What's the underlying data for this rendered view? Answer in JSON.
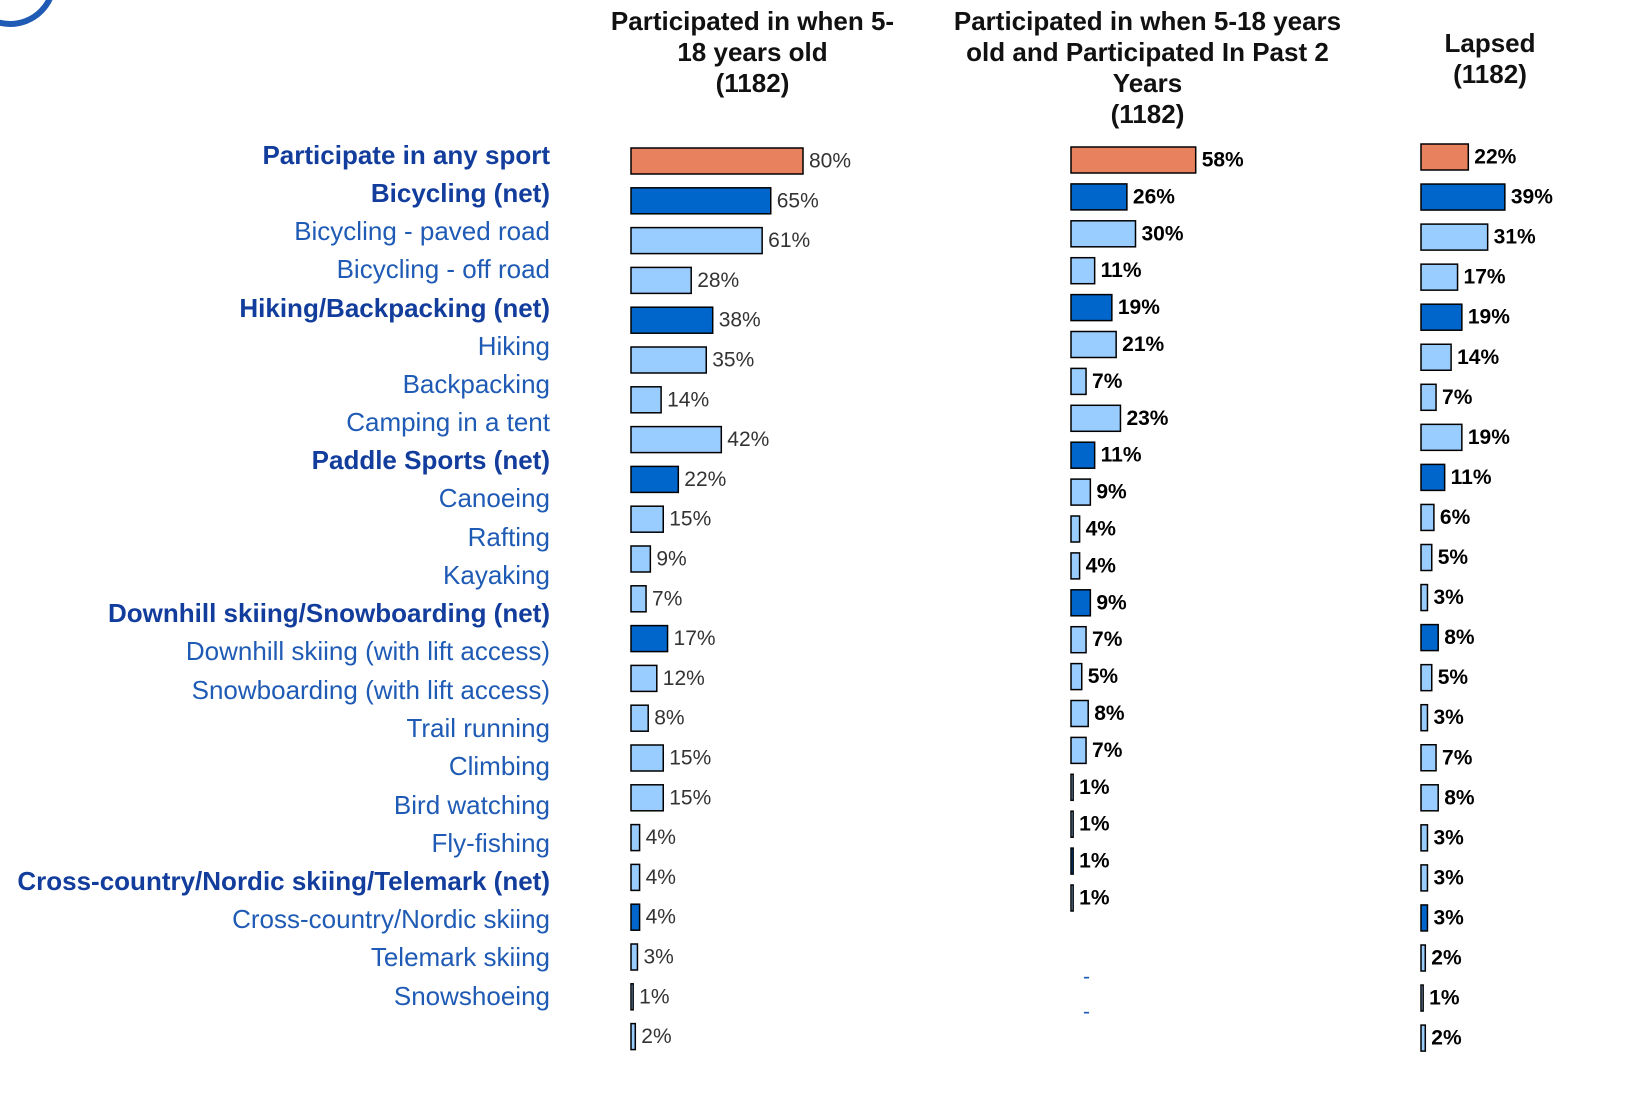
{
  "chart_data": {
    "type": "bar",
    "orientation": "horizontal",
    "categories": [
      "Participate in any sport",
      "Bicycling (net)",
      "Bicycling - paved road",
      "Bicycling - off road",
      "Hiking/Backpacking (net)",
      "Hiking",
      "Backpacking",
      "Camping in a tent",
      "Paddle Sports (net)",
      "Canoeing",
      "Rafting",
      "Kayaking",
      "Downhill skiing/Snowboarding (net)",
      "Downhill skiing  (with lift access)",
      "Snowboarding  (with lift access)",
      "Trail running",
      "Climbing",
      "Bird watching",
      "Fly-fishing",
      "Cross-country/Nordic skiing/Telemark (net)",
      "Cross-country/Nordic skiing",
      "Telemark skiing",
      "Snowshoeing"
    ],
    "colors": [
      "#e8825e",
      "#0066cc",
      "#99ccff",
      "#99ccff",
      "#0066cc",
      "#99ccff",
      "#99ccff",
      "#99ccff",
      "#0066cc",
      "#99ccff",
      "#99ccff",
      "#99ccff",
      "#0066cc",
      "#99ccff",
      "#99ccff",
      "#99ccff",
      "#99ccff",
      "#99ccff",
      "#99ccff",
      "#0066cc",
      "#99ccff",
      "#99ccff",
      "#99ccff"
    ],
    "series": [
      {
        "name": "Participated in when 5-18 years old",
        "base": "(1182)",
        "values": [
          80,
          65,
          61,
          28,
          38,
          35,
          14,
          42,
          22,
          15,
          9,
          7,
          17,
          12,
          8,
          15,
          15,
          4,
          4,
          4,
          3,
          1,
          2
        ],
        "value_labels": [
          "80%",
          "65%",
          "61%",
          "28%",
          "38%",
          "35%",
          "14%",
          "42%",
          "22%",
          "15%",
          "9%",
          "7%",
          "17%",
          "12%",
          "8%",
          "15%",
          "15%",
          "4%",
          "4%",
          "4%",
          "3%",
          "1%",
          "2%"
        ]
      },
      {
        "name": "Participated in when 5-18 years old and Participated In Past 2 Years",
        "base": "(1182)",
        "values": [
          58,
          26,
          30,
          11,
          19,
          21,
          7,
          23,
          11,
          9,
          4,
          4,
          9,
          7,
          5,
          8,
          7,
          1,
          1,
          1,
          1,
          null,
          null
        ],
        "value_labels": [
          "58%",
          "26%",
          "30%",
          "11%",
          "19%",
          "21%",
          "7%",
          "23%",
          "11%",
          "9%",
          "4%",
          "4%",
          "9%",
          "7%",
          "5%",
          "8%",
          "7%",
          "1%",
          "1%",
          "1%",
          "1%",
          "-",
          "-"
        ]
      },
      {
        "name": "Lapsed",
        "base": "(1182)",
        "values": [
          22,
          39,
          31,
          17,
          19,
          14,
          7,
          19,
          11,
          6,
          5,
          3,
          8,
          5,
          3,
          7,
          8,
          3,
          3,
          3,
          2,
          1,
          2
        ],
        "value_labels": [
          "22%",
          "39%",
          "31%",
          "17%",
          "19%",
          "14%",
          "7%",
          "19%",
          "11%",
          "6%",
          "5%",
          "3%",
          "8%",
          "5%",
          "3%",
          "7%",
          "8%",
          "3%",
          "3%",
          "3%",
          "2%",
          "1%",
          "2%"
        ]
      }
    ]
  }
}
